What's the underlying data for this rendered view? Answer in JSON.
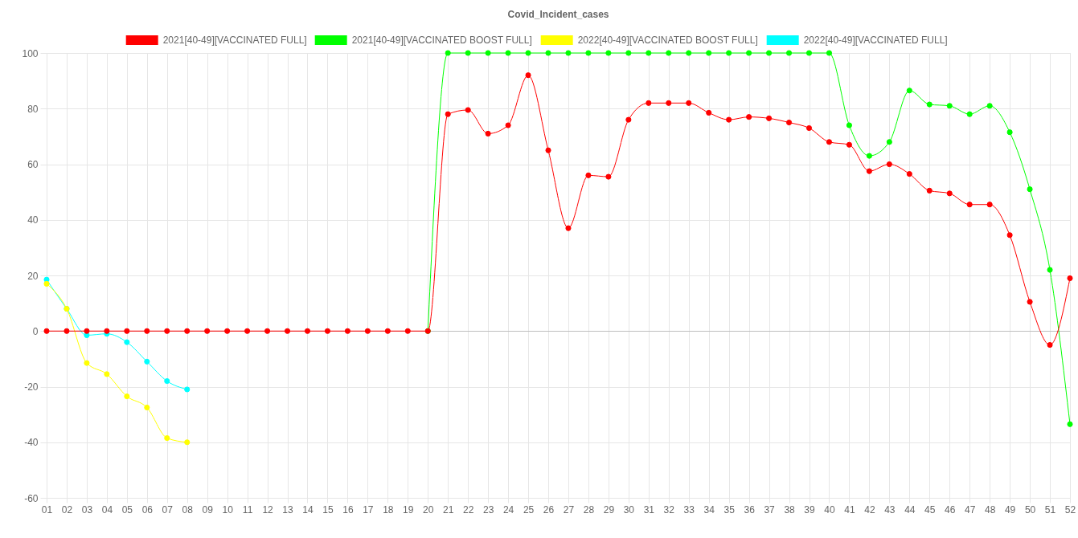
{
  "chart_data": {
    "type": "line",
    "title": "Covid_Incident_cases",
    "categories": [
      "01",
      "02",
      "03",
      "04",
      "05",
      "06",
      "07",
      "08",
      "09",
      "10",
      "11",
      "12",
      "13",
      "14",
      "15",
      "16",
      "17",
      "18",
      "19",
      "20",
      "21",
      "22",
      "23",
      "24",
      "25",
      "26",
      "27",
      "28",
      "29",
      "30",
      "31",
      "32",
      "33",
      "34",
      "35",
      "36",
      "37",
      "38",
      "39",
      "40",
      "41",
      "42",
      "43",
      "44",
      "45",
      "46",
      "47",
      "48",
      "49",
      "50",
      "51",
      "52"
    ],
    "series": [
      {
        "name": "2021[40-49][VACCINATED FULL]",
        "color": "#ff0000",
        "values": [
          0,
          0,
          0,
          0,
          0,
          0,
          0,
          0,
          0,
          0,
          0,
          0,
          0,
          0,
          0,
          0,
          0,
          0,
          0,
          0,
          78,
          79.5,
          71,
          74,
          92,
          65,
          37,
          56,
          55.5,
          76,
          82,
          82,
          82,
          78.5,
          76,
          77,
          76.5,
          75,
          73,
          68,
          67,
          57.5,
          60,
          56.5,
          50.5,
          49.5,
          45.5,
          45.5,
          34.5,
          10.5,
          -5,
          19
        ]
      },
      {
        "name": "2021[40-49][VACCINATED BOOST FULL]",
        "color": "#00ff00",
        "values": [
          null,
          null,
          null,
          null,
          null,
          null,
          null,
          null,
          null,
          null,
          null,
          null,
          null,
          null,
          null,
          null,
          null,
          null,
          null,
          0,
          100,
          100,
          100,
          100,
          100,
          100,
          100,
          100,
          100,
          100,
          100,
          100,
          100,
          100,
          100,
          100,
          100,
          100,
          100,
          100,
          74,
          63,
          68,
          86.5,
          81.5,
          81,
          78,
          81,
          71.5,
          51,
          22,
          -33.5
        ]
      },
      {
        "name": "2022[40-49][VACCINATED BOOST FULL]",
        "color": "#ffff00",
        "values": [
          17,
          8,
          -11.5,
          -15.5,
          -23.5,
          -27.5,
          -38.5,
          -40,
          null,
          null,
          null,
          null,
          null,
          null,
          null,
          null,
          null,
          null,
          null,
          null,
          null,
          null,
          null,
          null,
          null,
          null,
          null,
          null,
          null,
          null,
          null,
          null,
          null,
          null,
          null,
          null,
          null,
          null,
          null,
          null,
          null,
          null,
          null,
          null,
          null,
          null,
          null,
          null,
          null,
          null,
          null,
          null
        ]
      },
      {
        "name": "2022[40-49][VACCINATED FULL]",
        "color": "#00ffff",
        "values": [
          18.5,
          8,
          -1.5,
          -1,
          -4,
          -11,
          -18,
          -21,
          null,
          null,
          null,
          null,
          null,
          null,
          null,
          null,
          null,
          null,
          null,
          null,
          null,
          null,
          null,
          null,
          null,
          null,
          null,
          null,
          null,
          null,
          null,
          null,
          null,
          null,
          null,
          null,
          null,
          null,
          null,
          null,
          null,
          null,
          null,
          null,
          null,
          null,
          null,
          null,
          null,
          null,
          null,
          null
        ]
      }
    ],
    "ylim": [
      -60,
      100
    ],
    "yticks": [
      -60,
      -40,
      -20,
      0,
      20,
      40,
      60,
      80,
      100
    ],
    "grid": true,
    "legend": "top",
    "marker": "circle",
    "line_style": "solid"
  }
}
